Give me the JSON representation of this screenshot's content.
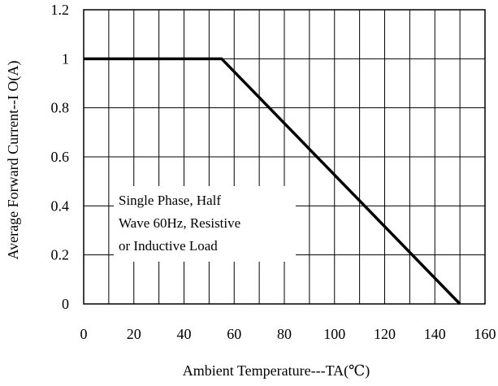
{
  "chart_data": {
    "type": "line",
    "title": "",
    "xlabel": "Ambient Temperature---TA(℃)",
    "ylabel": "Average Forward Current--I O(A)",
    "xlim": [
      0,
      160
    ],
    "ylim": [
      0,
      1.2
    ],
    "x_ticks": [
      "0",
      "20",
      "40",
      "60",
      "80",
      "100",
      "120",
      "140",
      "160"
    ],
    "y_ticks": [
      "0",
      "0.2",
      "0.4",
      "0.6",
      "0.8",
      "1",
      "1.2"
    ],
    "grid": true,
    "series": [
      {
        "x": [
          0,
          55,
          150
        ],
        "y": [
          1.0,
          1.0,
          0.0
        ]
      }
    ],
    "annotation": [
      "Single Phase, Half",
      "Wave 60Hz, Resistive",
      " or Inductive Load"
    ],
    "colors": {
      "line": "#000000",
      "grid": "#000000",
      "background": "#ffffff"
    }
  }
}
